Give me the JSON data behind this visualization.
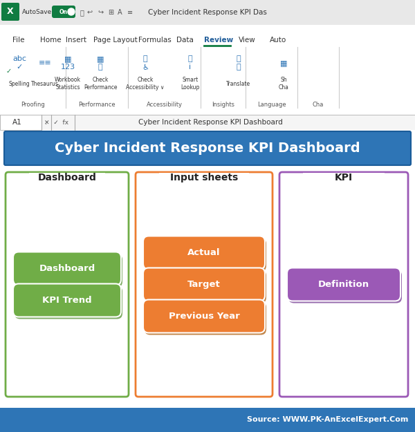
{
  "title": "Cyber Incident Response KPI Dashboard",
  "title_banner_color": "#2E75B6",
  "title_text_color": "#FFFFFF",
  "title_fontsize": 16,
  "bg_color": "#F2F2F2",
  "excel_bg": "#D6D6D6",
  "ribbon_bg": "#FFFFFF",
  "formula_bar_text": "Cyber Incident Response KPI Dashboard",
  "cell_ref": "A1",
  "dashboard_panel": {
    "label": "Dashboard",
    "border_color": "#70AD47",
    "buttons": [
      "Dashboard",
      "KPI Trend"
    ],
    "button_color": "#70AD47",
    "button_text_color": "#FFFFFF"
  },
  "input_panel": {
    "label": "Input sheets",
    "border_color": "#ED7D31",
    "buttons": [
      "Actual",
      "Target",
      "Previous Year"
    ],
    "button_color": "#ED7D31",
    "button_text_color": "#FFFFFF"
  },
  "kpi_panel": {
    "label": "KPI",
    "border_color": "#9B59B6",
    "buttons": [
      "Definition"
    ],
    "button_color": "#9B59B6",
    "button_text_color": "#FFFFFF"
  },
  "footer_text": "Source: WWW.PK-AnExcelExpert.Com",
  "footer_bg": "#2E75B6",
  "footer_text_color": "#FFFFFF"
}
